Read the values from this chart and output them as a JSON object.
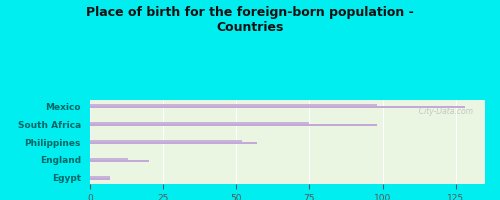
{
  "title": "Place of birth for the foreign-born population -\nCountries",
  "categories": [
    "Mexico",
    "South Africa",
    "Philippines",
    "England",
    "Egypt"
  ],
  "values1": [
    128,
    98,
    57,
    20,
    7
  ],
  "values2": [
    98,
    75,
    52,
    13,
    7
  ],
  "bar_color": "#c3a8d8",
  "background_outer": "#00eef0",
  "background_inner": "#eaf5e2",
  "title_color": "#111111",
  "label_color": "#006666",
  "tick_color": "#555555",
  "xlim": [
    0,
    135
  ],
  "xticks": [
    0,
    25,
    50,
    75,
    100,
    125
  ],
  "bar_height": 0.12,
  "bar_gap": 0.14,
  "watermark": "  City-Data.com"
}
